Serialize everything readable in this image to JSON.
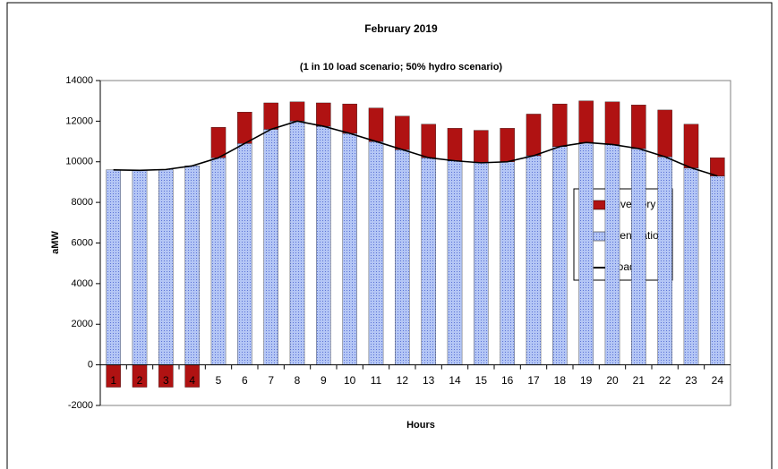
{
  "chart_data": {
    "type": "bar",
    "title": "February 2019",
    "subtitle": "(1 in 10 load scenario; 50% hydro scenario)",
    "x_label": "Hours",
    "y_label": "aMW",
    "categories": [
      "1",
      "2",
      "3",
      "4",
      "5",
      "6",
      "7",
      "8",
      "9",
      "10",
      "11",
      "12",
      "13",
      "14",
      "15",
      "16",
      "17",
      "18",
      "19",
      "20",
      "21",
      "22",
      "23",
      "24"
    ],
    "series": [
      {
        "name": "Inventory",
        "color": "#b01212",
        "kind": "bar",
        "values": [
          -1100,
          -1100,
          -1100,
          -1100,
          1500,
          1550,
          1300,
          950,
          1150,
          1450,
          1650,
          1650,
          1650,
          1600,
          1600,
          1650,
          2050,
          2100,
          2050,
          2100,
          2150,
          2300,
          2150,
          900
        ]
      },
      {
        "name": "Generation",
        "color": "#9fb4f0",
        "kind": "bar",
        "values": [
          9600,
          9580,
          9620,
          9800,
          10200,
          10900,
          11600,
          12000,
          11750,
          11400,
          11000,
          10600,
          10200,
          10050,
          9950,
          10000,
          10300,
          10750,
          10950,
          10850,
          10650,
          10250,
          9700,
          9300
        ]
      },
      {
        "name": "Loads",
        "color": "#000000",
        "kind": "line",
        "values": [
          9600,
          9580,
          9620,
          9800,
          10200,
          10900,
          11600,
          12000,
          11750,
          11400,
          11000,
          10600,
          10200,
          10050,
          9950,
          10000,
          10300,
          10750,
          10950,
          10850,
          10650,
          10250,
          9700,
          9300
        ]
      }
    ],
    "ylim": [
      -2000,
      14000
    ],
    "yticks": [
      -2000,
      0,
      2000,
      4000,
      6000,
      8000,
      10000,
      12000,
      14000
    ]
  }
}
